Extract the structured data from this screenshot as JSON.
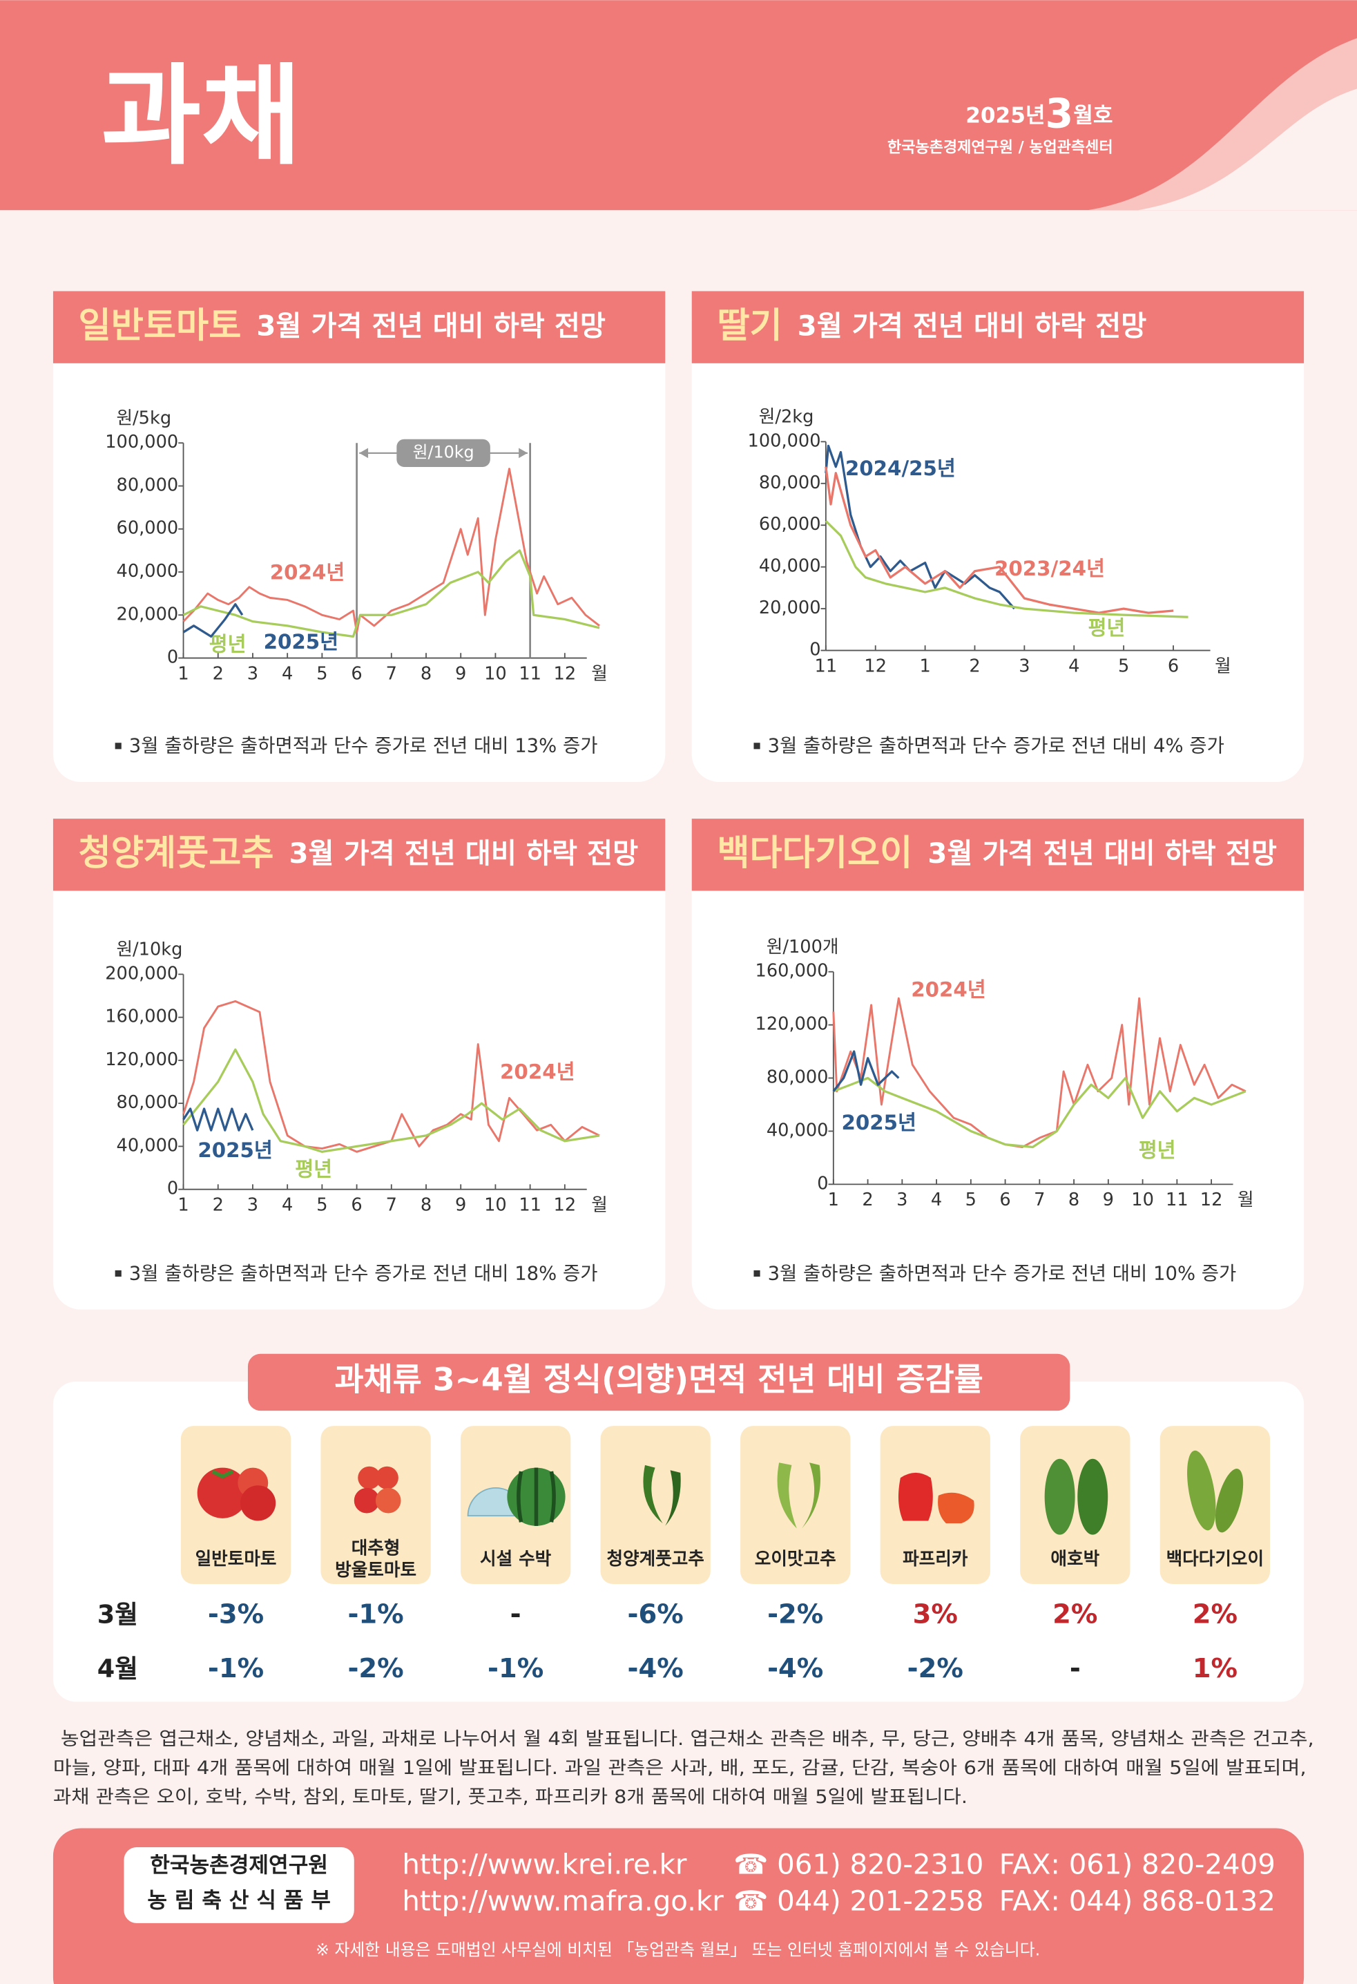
{
  "header": {
    "title": "과채",
    "issue_year": "2025년",
    "issue_month": "3",
    "issue_suffix": "월호",
    "publisher": "한국농촌경제연구원 / 농업관측센터"
  },
  "chart_data": [
    {
      "type": "line",
      "title": "일반토마토",
      "subtitle": "3월 가격 전년 대비 하락 전망",
      "y_unit": "원/5kg",
      "x_unit": "월",
      "annotation": "원/10kg",
      "annotation_range": [
        6,
        11
      ],
      "xlim": [
        1,
        13
      ],
      "xticks": [
        1,
        2,
        3,
        4,
        5,
        6,
        7,
        8,
        9,
        10,
        11,
        12
      ],
      "ylim": [
        0,
        100000
      ],
      "yticks": [
        0,
        {
          "value": 20000,
          "label": "20,000"
        },
        {
          "value": 40000,
          "label": "40,000"
        },
        {
          "value": 60000,
          "label": "60,000"
        },
        {
          "value": 80000,
          "label": "80,000"
        },
        {
          "value": 100000,
          "label": "100,000"
        }
      ],
      "series": [
        {
          "name": "2024년",
          "color": "#e8766a",
          "x": [
            1,
            1.3,
            1.7,
            2.0,
            2.3,
            2.6,
            2.9,
            3.2,
            3.5,
            4.0,
            4.5,
            5.0,
            5.5,
            5.9,
            6.0,
            6.1,
            6.5,
            7.0,
            7.5,
            8.0,
            8.5,
            9.0,
            9.2,
            9.5,
            9.7,
            10.0,
            10.4,
            10.9,
            11.2,
            11.4,
            11.8,
            12.2,
            12.6,
            13
          ],
          "values": [
            17000,
            22000,
            30000,
            27000,
            25000,
            28000,
            33000,
            30000,
            28000,
            27000,
            24000,
            20000,
            18000,
            22000,
            12000,
            20000,
            15000,
            22000,
            25000,
            30000,
            35000,
            60000,
            48000,
            65000,
            20000,
            55000,
            88000,
            45000,
            30000,
            38000,
            25000,
            28000,
            20000,
            15000
          ]
        },
        {
          "name": "평년",
          "color": "#a8cc5c",
          "x": [
            1,
            1.5,
            2,
            2.5,
            3,
            4,
            5,
            5.9,
            6.1,
            7,
            8,
            8.7,
            9.5,
            9.8,
            10.3,
            10.7,
            11,
            11.1,
            12,
            13
          ],
          "values": [
            20000,
            24000,
            22000,
            20000,
            17000,
            15000,
            12000,
            10000,
            20000,
            20000,
            25000,
            35000,
            40000,
            35000,
            45000,
            50000,
            38000,
            20000,
            18000,
            14000
          ]
        },
        {
          "name": "2025년",
          "color": "#2e5a8e",
          "x": [
            1,
            1.3,
            1.8,
            2.2,
            2.5,
            2.7
          ],
          "values": [
            12000,
            15000,
            10000,
            18000,
            25000,
            20000
          ]
        }
      ],
      "note": "3월 출하량은 출하면적과 단수 증가로 전년 대비 13% 증가"
    },
    {
      "type": "line",
      "title": "딸기",
      "subtitle": "3월 가격 전년 대비 하락 전망",
      "y_unit": "원/2kg",
      "x_unit": "월",
      "xlim": [
        0,
        8
      ],
      "xticks": [
        {
          "value": 0,
          "label": "11"
        },
        {
          "value": 1,
          "label": "12"
        },
        {
          "value": 2,
          "label": "1"
        },
        {
          "value": 3,
          "label": "2"
        },
        {
          "value": 4,
          "label": "3"
        },
        {
          "value": 5,
          "label": "4"
        },
        {
          "value": 6,
          "label": "5"
        },
        {
          "value": 7,
          "label": "6"
        }
      ],
      "ylim": [
        0,
        100000
      ],
      "yticks": [
        0,
        {
          "value": 20000,
          "label": "20,000"
        },
        {
          "value": 40000,
          "label": "40,000"
        },
        {
          "value": 60000,
          "label": "60,000"
        },
        {
          "value": 80000,
          "label": "80,000"
        },
        {
          "value": 100000,
          "label": "100,000"
        }
      ],
      "series": [
        {
          "name": "2024/25년",
          "color": "#2e5a8e",
          "x": [
            0,
            0.05,
            0.2,
            0.3,
            0.5,
            0.7,
            0.9,
            1.1,
            1.3,
            1.5,
            1.7,
            2.0,
            2.2,
            2.4,
            2.8,
            3.0,
            3.3,
            3.5,
            3.8
          ],
          "values": [
            85000,
            98000,
            88000,
            95000,
            65000,
            50000,
            40000,
            45000,
            38000,
            43000,
            38000,
            42000,
            30000,
            38000,
            32000,
            36000,
            30000,
            28000,
            20000
          ]
        },
        {
          "name": "2023/24년",
          "color": "#e8766a",
          "x": [
            0,
            0.1,
            0.2,
            0.5,
            0.8,
            1.0,
            1.3,
            1.6,
            2.0,
            2.4,
            2.7,
            3.0,
            3.5,
            4.0,
            4.5,
            5.0,
            5.5,
            6.0,
            6.5,
            7.0
          ],
          "values": [
            88000,
            70000,
            85000,
            60000,
            45000,
            48000,
            35000,
            40000,
            32000,
            38000,
            30000,
            38000,
            40000,
            25000,
            22000,
            20000,
            18000,
            20000,
            18000,
            19000
          ]
        },
        {
          "name": "평년",
          "color": "#a8cc5c",
          "x": [
            0,
            0.3,
            0.6,
            0.8,
            1.2,
            1.6,
            2.0,
            2.4,
            3.0,
            3.5,
            4.0,
            5.0,
            6.0,
            7.3
          ],
          "values": [
            62000,
            55000,
            40000,
            35000,
            32000,
            30000,
            28000,
            30000,
            25000,
            22000,
            20000,
            18000,
            17000,
            16000
          ]
        }
      ],
      "note": "3월 출하량은 출하면적과 단수 증가로 전년 대비 4% 증가"
    },
    {
      "type": "line",
      "title": "청양계풋고추",
      "subtitle": "3월 가격 전년 대비 하락 전망",
      "y_unit": "원/10kg",
      "x_unit": "월",
      "xlim": [
        1,
        13
      ],
      "xticks": [
        1,
        2,
        3,
        4,
        5,
        6,
        7,
        8,
        9,
        10,
        11,
        12
      ],
      "ylim": [
        0,
        200000
      ],
      "yticks": [
        0,
        {
          "value": 40000,
          "label": "40,000"
        },
        {
          "value": 80000,
          "label": "80,000"
        },
        {
          "value": 120000,
          "label": "120,000"
        },
        {
          "value": 160000,
          "label": "160,000"
        },
        {
          "value": 200000,
          "label": "200,000"
        }
      ],
      "series": [
        {
          "name": "2024년",
          "color": "#e8766a",
          "x": [
            1,
            1.3,
            1.6,
            2,
            2.5,
            3.2,
            3.5,
            4,
            4.5,
            5,
            5.5,
            6,
            6.5,
            7,
            7.3,
            7.8,
            8.2,
            8.6,
            9,
            9.3,
            9.5,
            9.8,
            10.1,
            10.4,
            10.8,
            11.2,
            11.6,
            12,
            12.5,
            13
          ],
          "values": [
            70000,
            100000,
            150000,
            170000,
            175000,
            165000,
            100000,
            50000,
            40000,
            38000,
            42000,
            35000,
            40000,
            45000,
            70000,
            40000,
            55000,
            60000,
            70000,
            65000,
            135000,
            60000,
            45000,
            85000,
            70000,
            55000,
            60000,
            45000,
            58000,
            50000
          ]
        },
        {
          "name": "평년",
          "color": "#a8cc5c",
          "x": [
            1,
            1.5,
            2,
            2.5,
            3,
            3.3,
            3.8,
            4.5,
            5,
            6,
            7,
            8,
            8.7,
            9.2,
            9.6,
            10.2,
            10.7,
            11.3,
            12,
            13
          ],
          "values": [
            60000,
            80000,
            100000,
            130000,
            100000,
            70000,
            45000,
            40000,
            35000,
            40000,
            45000,
            50000,
            60000,
            70000,
            80000,
            65000,
            75000,
            55000,
            45000,
            50000
          ]
        },
        {
          "name": "2025년",
          "color": "#2e5a8e",
          "x": [
            1,
            1.2,
            1.4,
            1.6,
            1.8,
            2.0,
            2.2,
            2.4,
            2.6,
            2.8,
            3.0
          ],
          "values": [
            65000,
            75000,
            55000,
            75000,
            55000,
            75000,
            55000,
            75000,
            55000,
            70000,
            55000
          ]
        }
      ],
      "note": "3월 출하량은 출하면적과 단수 증가로 전년 대비 18% 증가"
    },
    {
      "type": "line",
      "title": "백다다기오이",
      "subtitle": "3월 가격 전년 대비 하락 전망",
      "y_unit": "원/100개",
      "x_unit": "월",
      "xlim": [
        1,
        13
      ],
      "xticks": [
        1,
        2,
        3,
        4,
        5,
        6,
        7,
        8,
        9,
        10,
        11,
        12
      ],
      "ylim": [
        0,
        160000
      ],
      "yticks": [
        0,
        {
          "value": 40000,
          "label": "40,000"
        },
        {
          "value": 80000,
          "label": "80,000"
        },
        {
          "value": 120000,
          "label": "120,000"
        },
        {
          "value": 160000,
          "label": "160,000"
        }
      ],
      "series": [
        {
          "name": "2024년",
          "color": "#e8766a",
          "x": [
            1,
            1.1,
            1.5,
            1.8,
            2.1,
            2.4,
            2.9,
            3.3,
            3.8,
            4.5,
            5,
            5.5,
            6,
            6.5,
            7,
            7.5,
            7.7,
            8,
            8.4,
            8.7,
            9.1,
            9.4,
            9.6,
            9.9,
            10.2,
            10.5,
            10.8,
            11.1,
            11.5,
            11.8,
            12.2,
            12.6,
            13
          ],
          "values": [
            130000,
            70000,
            100000,
            80000,
            135000,
            60000,
            140000,
            90000,
            70000,
            50000,
            45000,
            35000,
            30000,
            28000,
            35000,
            40000,
            85000,
            60000,
            90000,
            70000,
            80000,
            120000,
            60000,
            140000,
            60000,
            110000,
            70000,
            105000,
            75000,
            90000,
            65000,
            75000,
            70000
          ]
        },
        {
          "name": "평년",
          "color": "#a8cc5c",
          "x": [
            1,
            1.5,
            2,
            2.5,
            3,
            4,
            5,
            6,
            6.8,
            7.5,
            8,
            8.5,
            9,
            9.5,
            10,
            10.5,
            11,
            11.5,
            12,
            13
          ],
          "values": [
            70000,
            75000,
            80000,
            70000,
            65000,
            55000,
            40000,
            30000,
            28000,
            40000,
            60000,
            75000,
            65000,
            80000,
            50000,
            70000,
            55000,
            65000,
            60000,
            70000
          ]
        },
        {
          "name": "2025년",
          "color": "#2e5a8e",
          "x": [
            1,
            1.3,
            1.6,
            1.8,
            2,
            2.3,
            2.7,
            2.9
          ],
          "values": [
            70000,
            80000,
            100000,
            75000,
            95000,
            75000,
            85000,
            80000
          ]
        }
      ],
      "note": "3월 출하량은 출하면적과 단수 증가로 전년 대비 10% 증가"
    }
  ],
  "area_table": {
    "title": "과채류 3~4월 정식(의향)면적 전년 대비 증감률",
    "items": [
      [
        "일반토마토"
      ],
      [
        "대추형",
        "방울토마토"
      ],
      [
        "시설 수박"
      ],
      [
        "청양계풋고추"
      ],
      [
        "오이맛고추"
      ],
      [
        "파프리카"
      ],
      [
        "애호박"
      ],
      [
        "백다다기오이"
      ]
    ],
    "rows": [
      {
        "label": "3월",
        "cells": [
          "-3%",
          "-1%",
          "-",
          "-6%",
          "-2%",
          "3%",
          "2%",
          "2%"
        ]
      },
      {
        "label": "4월",
        "cells": [
          "-1%",
          "-2%",
          "-1%",
          "-4%",
          "-4%",
          "-2%",
          "-",
          "1%"
        ]
      }
    ]
  },
  "notes": [
    "농업관측은 엽근채소, 양념채소, 과일, 과채로 나누어서 월 4회 발표됩니다. 엽근채소 관측은 배추, 무, 당근, 양배추 4개 품목, 양념채소 관측은 건고추,",
    "마늘, 양파, 대파 4개 품목에 대하여 매월 1일에 발표됩니다. 과일 관측은 사과, 배, 포도, 감귤, 단감, 복숭아 6개 품목에 대하여 매월 5일에 발표되며,",
    "과채 관측은 오이, 호박, 수박, 참외, 토마토, 딸기, 풋고추, 파프리카 8개 품목에 대하여 매월 5일에 발표됩니다."
  ],
  "footer": {
    "orgs": [
      "한국농촌경제연구원",
      "농 림 축 산 식 품 부"
    ],
    "urls": [
      "http://www.krei.re.kr",
      "http://www.mafra.go.kr"
    ],
    "phones": [
      "☎ 061) 820-2310",
      "☎ 044) 201-2258"
    ],
    "faxes": [
      "FAX: 061) 820-2409",
      "FAX: 044) 868-0132"
    ],
    "note": "※ 자세한 내용은 도매법인 사무실에 비치된 「농업관측 월보」 또는 인터넷 홈페이지에서 볼 수 있습니다."
  }
}
